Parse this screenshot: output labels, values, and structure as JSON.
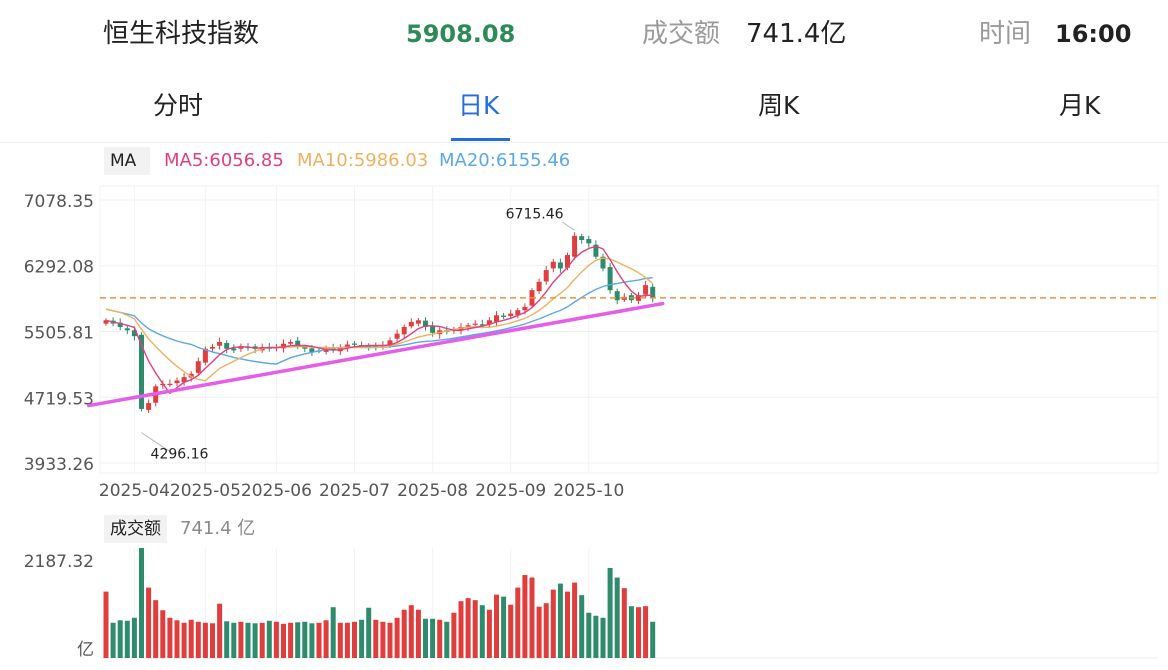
{
  "header": {
    "index_name": "恒生科技指数",
    "price": "5908.08",
    "turnover_label": "成交额",
    "turnover_value": "741.4亿",
    "time_label": "时间",
    "time_value": "16:00"
  },
  "tabs": [
    {
      "label": "分时",
      "active": false
    },
    {
      "label": "日K",
      "active": true
    },
    {
      "label": "周K",
      "active": false
    },
    {
      "label": "月K",
      "active": false
    }
  ],
  "ma_legend": {
    "label": "MA",
    "ma5": "MA5:6056.85",
    "ma10": "MA10:5986.03",
    "ma20": "MA20:6155.46"
  },
  "volume_legend": {
    "label": "成交额",
    "value": "741.4 亿"
  },
  "colors": {
    "up": "#e03d3d",
    "down": "#2e8b6b",
    "ma5": "#e0407f",
    "ma10": "#f0b060",
    "ma20": "#5aa9e6",
    "trendline": "#e55de8",
    "dashed": "#f0903a"
  },
  "chart_data": {
    "type": "candlestick",
    "price_axis": {
      "ticks": [
        "7078.35",
        "6292.08",
        "5505.81",
        "4719.53",
        "3933.26"
      ],
      "range": [
        3933.26,
        7078.35
      ]
    },
    "x_ticks": [
      "2025-04",
      "2025-05",
      "2025-06",
      "2025-07",
      "2025-08",
      "2025-09",
      "2025-10"
    ],
    "x_tick_index": [
      4,
      14,
      24,
      35,
      46,
      57,
      68
    ],
    "annotations": [
      {
        "label": "6715.46",
        "index": 66,
        "value": 6715.46
      },
      {
        "label": "4296.16",
        "index": 5,
        "value": 4296.16
      }
    ],
    "dashed_level": 5908.08,
    "trendline": [
      [
        -1,
        4620
      ],
      [
        77,
        5840
      ]
    ],
    "closes": [
      5640,
      5600,
      5560,
      5520,
      5450,
      4580,
      4650,
      4850,
      4880,
      4880,
      4920,
      4960,
      5000,
      5150,
      5300,
      5320,
      5380,
      5300,
      5280,
      5330,
      5320,
      5300,
      5320,
      5300,
      5320,
      5360,
      5380,
      5330,
      5300,
      5260,
      5270,
      5300,
      5290,
      5320,
      5350,
      5360,
      5340,
      5320,
      5330,
      5340,
      5400,
      5480,
      5560,
      5620,
      5640,
      5560,
      5490,
      5520,
      5500,
      5530,
      5560,
      5580,
      5600,
      5580,
      5640,
      5700,
      5680,
      5720,
      5760,
      5800,
      6000,
      6100,
      6240,
      6340,
      6260,
      6420,
      6650,
      6600,
      6560,
      6400,
      6260,
      6000,
      5880,
      5920,
      5880,
      5940,
      6060,
      5908
    ],
    "volume_axis": {
      "ticks": [
        "2187.32"
      ],
      "unit": "亿",
      "max": 2187.32
    },
    "volume": [
      1320,
      700,
      750,
      740,
      800,
      2187,
      1400,
      1150,
      950,
      800,
      750,
      700,
      760,
      720,
      700,
      690,
      1080,
      730,
      700,
      720,
      700,
      690,
      700,
      740,
      720,
      680,
      700,
      710,
      720,
      690,
      700,
      750,
      1010,
      700,
      700,
      720,
      760,
      1000,
      760,
      720,
      700,
      800,
      960,
      1050,
      960,
      780,
      780,
      760,
      720,
      900,
      1130,
      1190,
      1150,
      1050,
      960,
      1260,
      1220,
      1060,
      1400,
      1650,
      1600,
      1020,
      1090,
      1360,
      1480,
      1320,
      1500,
      1250,
      900,
      840,
      800,
      1790,
      1600,
      1390,
      1030,
      1010,
      1030,
      720
    ]
  }
}
